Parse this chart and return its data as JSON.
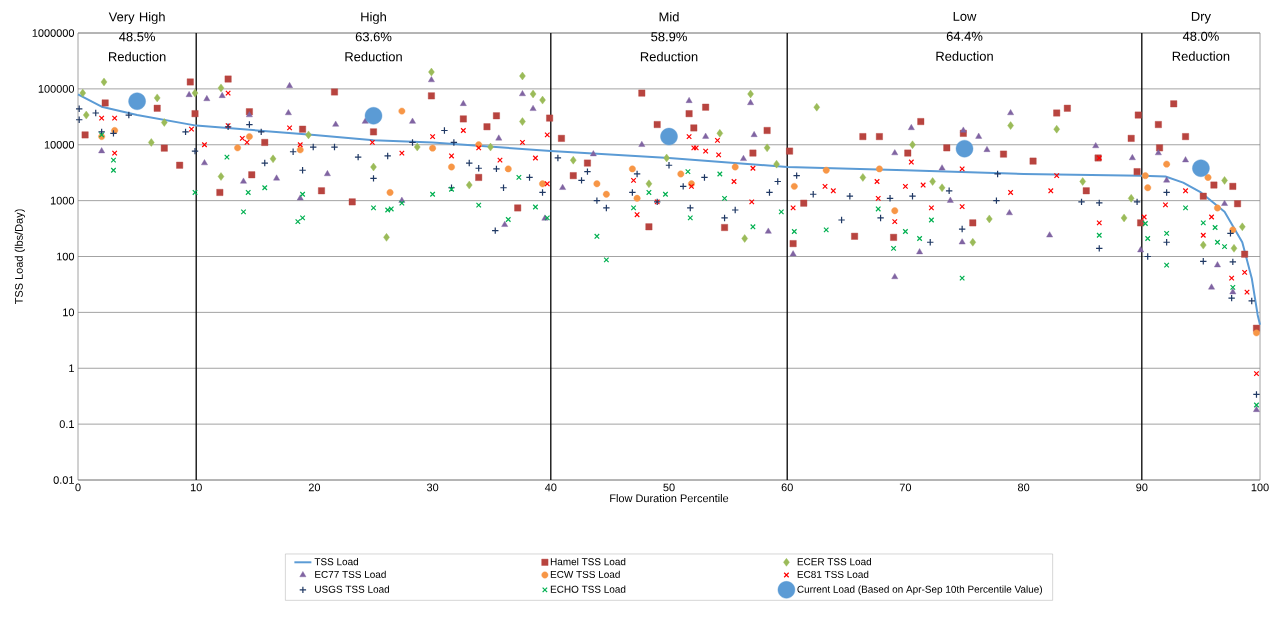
{
  "chart_data": {
    "type": "scatter",
    "xlabel": "Flow Duration Percentile",
    "ylabel": "TSS Load (lbs/Day)",
    "xlim": [
      0,
      100
    ],
    "xticks": [
      0,
      10,
      20,
      30,
      40,
      50,
      60,
      70,
      80,
      90,
      100
    ],
    "ylim": [
      0.01,
      1000000
    ],
    "yticks": [
      0.01,
      0.1,
      1,
      10,
      100,
      1000,
      10000,
      100000,
      1000000
    ],
    "log": "y",
    "grid": "y",
    "legend": "bottom",
    "ref_lines": [
      {
        "axis": "x",
        "value": 10,
        "color": "#000000"
      },
      {
        "axis": "x",
        "value": 40,
        "color": "#000000"
      },
      {
        "axis": "x",
        "value": 60,
        "color": "#000000"
      },
      {
        "axis": "x",
        "value": 90,
        "color": "#000000"
      }
    ],
    "annotations": [
      "Very High 48.5% Reduction",
      "High 63.6% Reduction",
      "Mid 58.9% Reduction",
      "Low 64.4% Reduction",
      "Dry 48.0% Reduction"
    ],
    "series": [
      {
        "name": "TSS Load",
        "type": "line",
        "color": "#5b9bd5",
        "marker": "none",
        "x": [
          0,
          2,
          5,
          10,
          20,
          25,
          30,
          40,
          50,
          60,
          70,
          80,
          90,
          92,
          93.5,
          95,
          97,
          98.5,
          99.3,
          99.8,
          100
        ],
        "values": [
          80000,
          48000,
          34000,
          22000,
          15000,
          12000,
          11000,
          7700,
          5800,
          4000,
          3500,
          3000,
          2800,
          2700,
          2100,
          1400,
          630,
          180,
          41,
          9,
          6
        ]
      },
      {
        "name": "Hamel TSS Load",
        "color": "#b8443f",
        "marker": "square",
        "x": [
          2.3,
          0.6,
          6.7,
          7.3,
          8.6,
          9.5,
          9.9,
          12,
          12.7,
          14.5,
          15.8,
          14.7,
          19,
          20.6,
          21.7,
          23.2,
          25,
          29.9,
          32.6,
          34.6,
          35.4,
          33.9,
          37.2,
          39.9,
          40.9,
          41.9,
          43.1,
          47.7,
          49,
          48.3,
          51.7,
          52.1,
          53.1,
          58.3,
          57.1,
          54.7,
          60.2,
          60.5,
          61.4,
          66.4,
          67.8,
          65.7,
          71.3,
          70.2,
          73.5,
          74.9,
          75.7,
          69,
          78.3,
          80.8,
          83.7,
          82.8,
          85.3,
          86.3,
          89.1,
          89.7,
          89.6,
          91.4,
          92.7,
          93.7,
          91.5,
          96.1,
          97.7,
          98.1,
          98.7,
          99.7,
          95.2,
          89.9
        ],
        "values": [
          56000,
          15000,
          45000,
          8700,
          4300,
          133000,
          36000,
          1400,
          150000,
          39000,
          11000,
          2900,
          19000,
          1500,
          88000,
          950,
          17000,
          75000,
          29000,
          21000,
          33000,
          2600,
          740,
          30000,
          13000,
          2800,
          4700,
          84000,
          23000,
          340,
          36000,
          20000,
          47000,
          18000,
          7100,
          330,
          7700,
          170,
          900,
          14000,
          14000,
          230,
          26000,
          7100,
          8800,
          16000,
          400,
          220,
          6800,
          5100,
          45000,
          37000,
          1500,
          5800,
          13000,
          34000,
          3300,
          23000,
          54000,
          14000,
          8800,
          1900,
          1800,
          880,
          110,
          5.2,
          1200,
          400
        ]
      },
      {
        "name": "ECER TSS Load",
        "color": "#9bbb59",
        "marker": "diamond",
        "x": [
          0.4,
          2.2,
          0.7,
          6.7,
          7.3,
          6.2,
          9.9,
          12.1,
          12.1,
          16.5,
          19.5,
          25,
          26.1,
          29.9,
          37.6,
          38.5,
          39.3,
          37.6,
          28.7,
          34.9,
          33.1,
          41.9,
          48.3,
          49.8,
          56.9,
          54.3,
          58.3,
          59.1,
          56.4,
          62.5,
          66.4,
          70.6,
          72.3,
          73.1,
          75.7,
          77.1,
          78.9,
          82.8,
          85,
          88.5,
          89.1,
          97,
          98.5,
          95.2,
          97.8
        ],
        "values": [
          84000,
          133000,
          34000,
          69000,
          25000,
          11000,
          84000,
          104000,
          2700,
          5600,
          15000,
          4000,
          220,
          200000,
          170000,
          81000,
          63000,
          26000,
          9100,
          9100,
          1900,
          5300,
          2000,
          5800,
          81000,
          16000,
          8800,
          4500,
          210,
          47000,
          2600,
          10000,
          2200,
          1700,
          180,
          470,
          22000,
          19000,
          2200,
          490,
          1100,
          2300,
          340,
          160,
          140
        ]
      },
      {
        "name": "EC77 TSS Load",
        "color": "#8064a2",
        "marker": "triangle",
        "x": [
          2,
          9.4,
          10.9,
          12.2,
          14.5,
          17.9,
          17.8,
          21.8,
          16.8,
          21.1,
          10.7,
          14,
          18.8,
          24.3,
          29.9,
          28.3,
          32.6,
          35.6,
          37.6,
          38.5,
          41,
          43.6,
          36.1,
          39.5,
          47.7,
          51.7,
          27.4,
          56.9,
          53.1,
          57.2,
          56.3,
          58.4,
          60.5,
          70.5,
          69.1,
          73.1,
          74.9,
          76.2,
          69.1,
          71.2,
          73.8,
          74.8,
          78.9,
          76.9,
          78.8,
          82.2,
          86.1,
          89.2,
          91.4,
          93.7,
          92.1,
          89.9,
          95.9,
          97,
          96.4,
          99.7,
          97.7
        ],
        "values": [
          7700,
          78000,
          66000,
          75000,
          34000,
          113000,
          37000,
          23000,
          2500,
          3000,
          4700,
          2200,
          1100,
          26000,
          144000,
          26000,
          54000,
          13000,
          81000,
          44000,
          1700,
          6800,
          370,
          480,
          10000,
          61000,
          1000,
          56000,
          14000,
          15000,
          5600,
          280,
          110,
          20000,
          7100,
          3800,
          18000,
          14000,
          43,
          120,
          1000,
          180,
          37000,
          8100,
          600,
          240,
          9500,
          5800,
          7100,
          5300,
          2300,
          130,
          28,
          880,
          70,
          0.18,
          23
        ]
      },
      {
        "name": "ECW TSS Load",
        "color": "#f79646",
        "marker": "circle",
        "x": [
          2,
          3.1,
          14.5,
          13.5,
          18.8,
          26.4,
          27.4,
          30,
          31.6,
          33.9,
          36.4,
          39.3,
          43.9,
          44.7,
          46.9,
          47.3,
          51,
          51.9,
          55.6,
          60.6,
          63.3,
          67.8,
          69.1,
          90.3,
          90.5,
          92.1,
          95.6,
          96.4,
          97.7,
          99.7
        ],
        "values": [
          14000,
          18000,
          14000,
          8800,
          8100,
          1400,
          40000,
          8700,
          4000,
          10000,
          3700,
          2000,
          2000,
          1300,
          3700,
          1100,
          3000,
          2000,
          4000,
          1800,
          3500,
          3700,
          660,
          2800,
          1700,
          4500,
          2600,
          740,
          300,
          4.3
        ]
      },
      {
        "name": "EC81 TSS Load",
        "color": "#ff0000",
        "marker": "cross",
        "x": [
          2,
          3.1,
          3.1,
          9.6,
          10.7,
          12.7,
          12.7,
          17.9,
          18.8,
          24.9,
          13.9,
          14.3,
          27.4,
          30,
          31.6,
          32.6,
          33.9,
          35.7,
          37.6,
          38.7,
          39.7,
          39.7,
          47,
          47.3,
          49,
          51.7,
          52.1,
          51.9,
          52.3,
          53.1,
          54.2,
          54.1,
          55.5,
          57.1,
          57,
          60.5,
          63.2,
          63.9,
          67.6,
          67.7,
          69.1,
          70,
          70.5,
          71.5,
          72.2,
          74.8,
          74.8,
          78.9,
          82.3,
          82.8,
          86.4,
          86.4,
          90.2,
          92,
          93.7,
          95.9,
          95.2,
          97.6,
          98.7,
          98.9,
          99.7
        ],
        "values": [
          30000,
          30000,
          7100,
          19000,
          10000,
          84000,
          22000,
          20000,
          10000,
          11000,
          13000,
          11000,
          7100,
          14000,
          6300,
          18000,
          8800,
          5300,
          11000,
          5800,
          15000,
          2000,
          2300,
          560,
          950,
          14000,
          8800,
          1800,
          8800,
          7700,
          6600,
          12000,
          2200,
          3800,
          950,
          740,
          1800,
          1500,
          2200,
          1100,
          420,
          1800,
          4900,
          1900,
          740,
          3700,
          780,
          1400,
          1500,
          2800,
          5800,
          400,
          510,
          840,
          1500,
          510,
          240,
          41,
          52,
          23,
          0.8
        ]
      },
      {
        "name": "USGS TSS Load",
        "color": "#1f3864",
        "marker": "plus",
        "x": [
          0.1,
          0.1,
          1.5,
          4.3,
          2,
          3,
          9.1,
          9.9,
          12.7,
          14.5,
          15.5,
          15.8,
          18.2,
          19.9,
          21.7,
          23.7,
          25,
          19,
          26.2,
          28.3,
          31,
          31.8,
          33.1,
          33.9,
          31.6,
          35.3,
          35.4,
          36,
          38.2,
          39.3,
          40.6,
          42.6,
          43.1,
          43.9,
          44.7,
          47.3,
          46.9,
          49,
          50,
          51.2,
          51.8,
          53,
          54.7,
          55.6,
          58.5,
          59.2,
          60.8,
          62.2,
          65.3,
          67.9,
          68.7,
          70.6,
          72.1,
          73.7,
          74.8,
          64.6,
          77.8,
          77.7,
          84.9,
          86.4,
          86.4,
          89.6,
          90.5,
          92.1,
          92.1,
          95.2,
          97.7,
          97.6,
          99.3,
          99.7,
          97.5
        ],
        "values": [
          44000,
          28000,
          37000,
          34000,
          17000,
          16000,
          17000,
          7700,
          21000,
          23000,
          17000,
          4700,
          7500,
          9100,
          9100,
          6000,
          2500,
          3500,
          6300,
          11000,
          18000,
          11000,
          4700,
          3800,
          1700,
          290,
          3700,
          1700,
          2600,
          1400,
          5800,
          2300,
          3300,
          1000,
          740,
          3000,
          1400,
          950,
          4300,
          1800,
          740,
          2600,
          490,
          680,
          1400,
          2200,
          2800,
          1300,
          1200,
          490,
          1100,
          1200,
          180,
          1500,
          310,
          450,
          3000,
          1000,
          950,
          910,
          140,
          950,
          100,
          1400,
          180,
          82,
          80,
          18,
          16,
          0.34,
          260
        ]
      },
      {
        "name": "ECHO TSS Load",
        "color": "#00b050",
        "marker": "cross",
        "x": [
          2,
          3,
          3,
          9.9,
          12.6,
          14,
          14.4,
          15.8,
          18.6,
          19,
          19,
          25,
          26.2,
          26.5,
          27.4,
          30,
          31.6,
          33.9,
          36.4,
          37.3,
          38.7,
          39.7,
          43.9,
          44.7,
          47,
          48.3,
          49.7,
          51.6,
          51.8,
          54.3,
          54.7,
          57.1,
          59.5,
          60.6,
          63.3,
          67.7,
          69,
          70,
          71.2,
          72.2,
          74.8,
          86.4,
          90.3,
          90.5,
          92.1,
          92.1,
          93.7,
          95.2,
          96.2,
          97,
          97.7,
          99.7,
          96.4
        ],
        "values": [
          15000,
          3500,
          5300,
          1400,
          6000,
          630,
          1400,
          1700,
          420,
          490,
          1300,
          740,
          680,
          710,
          900,
          1300,
          1600,
          830,
          460,
          2600,
          770,
          490,
          230,
          87,
          740,
          1400,
          1300,
          3300,
          490,
          3000,
          1100,
          340,
          630,
          280,
          300,
          710,
          140,
          280,
          210,
          450,
          41,
          240,
          390,
          210,
          260,
          70,
          740,
          400,
          330,
          150,
          28,
          0.22,
          180
        ]
      },
      {
        "name": "Current Load (Based on Apr-Sep 10th Percentile Value)",
        "type": "bubble",
        "color": "#5b9bd5",
        "marker": "circle",
        "x": [
          5,
          25,
          50,
          75,
          95
        ],
        "values": [
          60000,
          33000,
          14000,
          8500,
          3800
        ],
        "sizes": [
          1,
          1,
          1,
          1,
          1
        ]
      }
    ]
  }
}
